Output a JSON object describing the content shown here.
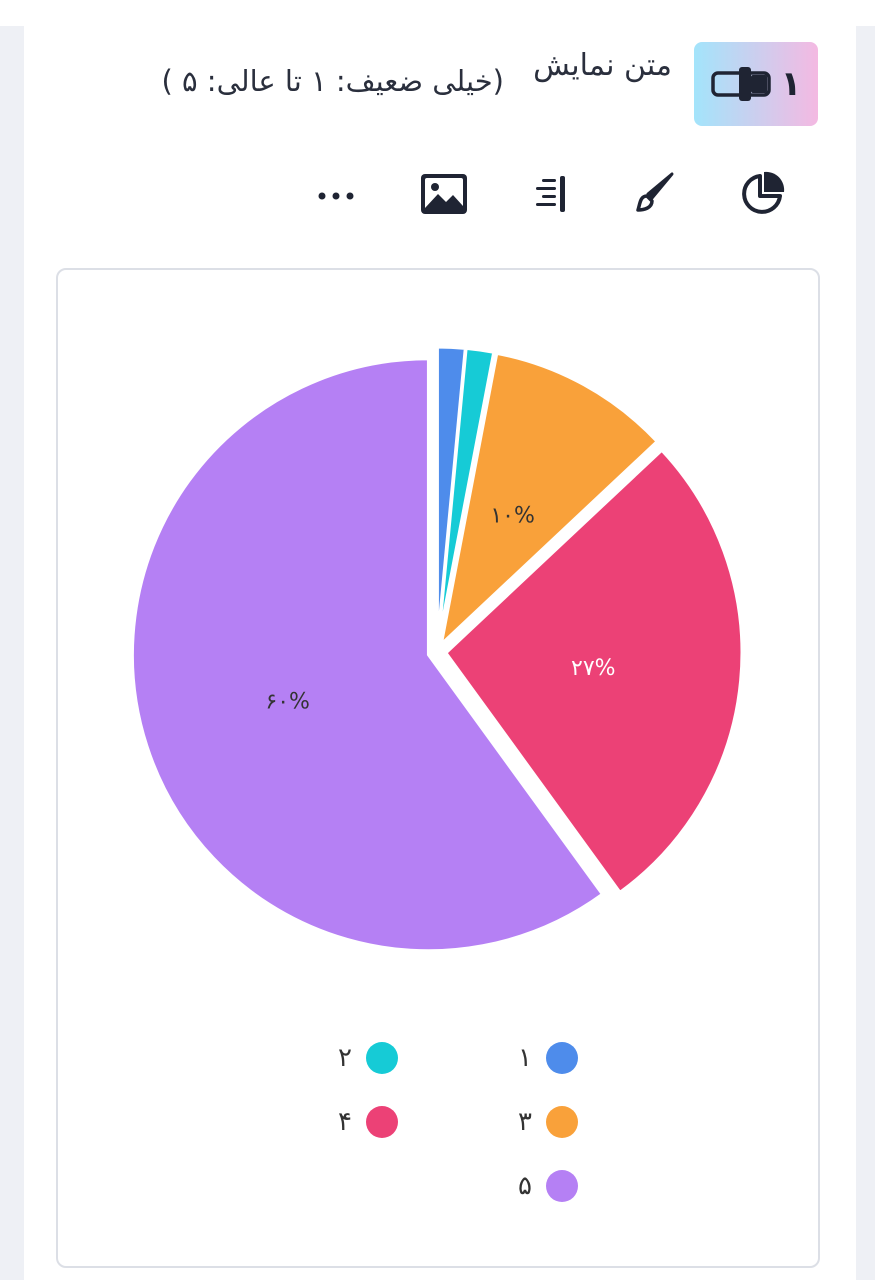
{
  "question": {
    "number": "۱",
    "title": "متن نمایش",
    "subtitle": "(خیلی ضعیف: ۱ تا عالی: ۵ )"
  },
  "toolbar": {
    "items": [
      {
        "icon": "pie-chart-icon"
      },
      {
        "icon": "brush-icon"
      },
      {
        "icon": "align-right-icon"
      },
      {
        "icon": "image-icon"
      },
      {
        "icon": "more-icon"
      }
    ]
  },
  "colors": {
    "blue": "#4e8ceb",
    "teal": "#16cbd6",
    "orange": "#f9a13a",
    "pink": "#ec4176",
    "purple": "#b580f4"
  },
  "chart_data": {
    "type": "pie",
    "categories": [
      "۱",
      "۲",
      "۳",
      "۴",
      "۵"
    ],
    "values": [
      1.5,
      1.5,
      10,
      27,
      60
    ],
    "data_labels": [
      "",
      "",
      "۱۰%",
      "۲۷%",
      "۶۰%"
    ],
    "colors": [
      "#4e8ceb",
      "#16cbd6",
      "#f9a13a",
      "#ec4176",
      "#b580f4"
    ],
    "exploded": true,
    "legend_position": "bottom"
  }
}
